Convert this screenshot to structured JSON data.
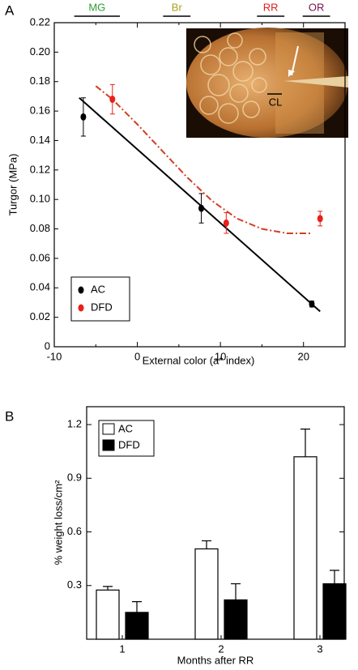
{
  "chart_data": [
    {
      "type": "scatter",
      "panel_label": "A",
      "x_label": "External color (a* index)",
      "y_label": "Turgor (MPa)",
      "xlim": [
        -10,
        25
      ],
      "xticks": [
        -10,
        0,
        10,
        20
      ],
      "x_minor_ticks": [
        -5,
        5,
        15,
        25
      ],
      "ylim": [
        0,
        0.22
      ],
      "yticks": [
        0,
        0.02,
        0.04,
        0.06,
        0.08,
        {
          "value": 0.1,
          "label": "0.10"
        },
        0.12,
        0.14,
        0.16,
        0.18,
        {
          "value": 0.2,
          "label": "0.20"
        },
        0.22
      ],
      "legend": "lower left",
      "stages": [
        {
          "label": "MG",
          "color": "#2e9e2e",
          "from": -7.6,
          "to": -2.1
        },
        {
          "label": "Br",
          "color": "#a8a020",
          "from": 3.1,
          "to": 6.4
        },
        {
          "label": "RR",
          "color": "#e02020",
          "from": 14.4,
          "to": 17.7
        },
        {
          "label": "OR",
          "color": "#7a1050",
          "from": 19.9,
          "to": 23.2
        }
      ],
      "inset_label": "CL",
      "series": [
        {
          "name": "AC",
          "color": "#000000",
          "x": [
            -6.5,
            7.7,
            21
          ],
          "values": [
            0.156,
            0.094,
            0.029
          ],
          "errors": [
            0.013,
            0.01,
            0.002
          ],
          "fit_color": "#000000",
          "fit_x": [
            -7,
            22
          ],
          "fit_y": [
            0.169,
            0.024
          ]
        },
        {
          "name": "DFD",
          "color": "#e8201c",
          "x": [
            -3,
            10.7,
            22
          ],
          "values": [
            0.168,
            0.084,
            0.087
          ],
          "errors": [
            0.01,
            0.007,
            0.005
          ],
          "fit_color": "#d04020",
          "fit_x": [
            -5,
            -3,
            0,
            3,
            6,
            9,
            12,
            15,
            18,
            21
          ],
          "fit_y": [
            0.177,
            0.168,
            0.151,
            0.133,
            0.115,
            0.099,
            0.087,
            0.08,
            0.077,
            0.077
          ]
        }
      ]
    },
    {
      "type": "bar",
      "panel_label": "B",
      "x_label": "Months after RR",
      "y_label": "% weight loss/cm²",
      "categories": [
        "1",
        "2",
        "3"
      ],
      "ylim": [
        0,
        1.3
      ],
      "yticks": [
        0.3,
        0.6,
        0.9,
        1.2
      ],
      "legend": "upper left",
      "series": [
        {
          "name": "AC",
          "color": "#ffffff",
          "values": [
            0.275,
            0.505,
            1.02
          ],
          "errors": [
            0.02,
            0.045,
            0.155
          ]
        },
        {
          "name": "DFD",
          "color": "#000000",
          "values": [
            0.15,
            0.22,
            0.31
          ],
          "errors": [
            0.06,
            0.09,
            0.075
          ]
        }
      ]
    }
  ]
}
